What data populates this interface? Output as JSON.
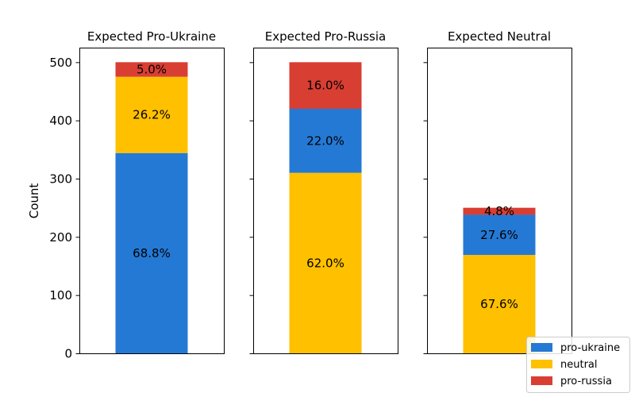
{
  "chart_data": {
    "type": "bar",
    "stacked": true,
    "ylabel": "Count",
    "ylim": [
      0,
      525
    ],
    "yticks": [
      0,
      100,
      200,
      300,
      400,
      500
    ],
    "shared_y": true,
    "legend": {
      "placement": "bottom-right",
      "entries": [
        {
          "name": "pro-ukraine",
          "color": "#2479d4"
        },
        {
          "name": "neutral",
          "color": "#ffc000"
        },
        {
          "name": "pro-russia",
          "color": "#d93e33"
        }
      ]
    },
    "panels": [
      {
        "title": "Expected Pro-Ukraine",
        "segments": [
          {
            "category": "pro-ukraine",
            "value": 344,
            "label": "68.8%",
            "color": "#2479d4"
          },
          {
            "category": "neutral",
            "value": 131,
            "label": "26.2%",
            "color": "#ffc000"
          },
          {
            "category": "pro-russia",
            "value": 25,
            "label": "5.0%",
            "color": "#d93e33"
          }
        ]
      },
      {
        "title": "Expected Pro-Russia",
        "segments": [
          {
            "category": "neutral",
            "value": 310,
            "label": "62.0%",
            "color": "#ffc000"
          },
          {
            "category": "pro-ukraine",
            "value": 110,
            "label": "22.0%",
            "color": "#2479d4"
          },
          {
            "category": "pro-russia",
            "value": 80,
            "label": "16.0%",
            "color": "#d93e33"
          }
        ]
      },
      {
        "title": "Expected Neutral",
        "segments": [
          {
            "category": "neutral",
            "value": 169,
            "label": "67.6%",
            "color": "#ffc000"
          },
          {
            "category": "pro-ukraine",
            "value": 69,
            "label": "27.6%",
            "color": "#2479d4"
          },
          {
            "category": "pro-russia",
            "value": 12,
            "label": "4.8%",
            "color": "#d93e33"
          }
        ]
      }
    ]
  }
}
